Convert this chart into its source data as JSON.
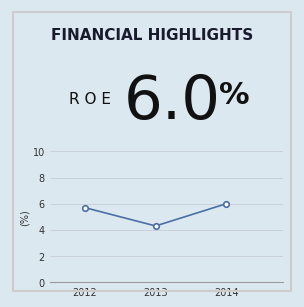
{
  "title": "FINANCIAL HIGHLIGHTS",
  "roe_label": "R O E",
  "roe_value": "6.0",
  "roe_unit": "%",
  "ylabel": "(%)",
  "years": [
    2012,
    2013,
    2014
  ],
  "values": [
    5.7,
    4.3,
    6.0
  ],
  "ylim": [
    0,
    10
  ],
  "yticks": [
    0,
    2,
    4,
    6,
    8,
    10
  ],
  "line_color": "#4a6fa5",
  "marker_color": "#4a6fa5",
  "title_bg_color": "#e8e8e8",
  "chart_bg_color": "#dce8f0",
  "title_fontsize": 11,
  "roe_label_fontsize": 11,
  "roe_value_fontsize": 44,
  "roe_unit_fontsize": 22,
  "tick_fontsize": 7,
  "ylabel_fontsize": 7,
  "border_color": "#cccccc"
}
